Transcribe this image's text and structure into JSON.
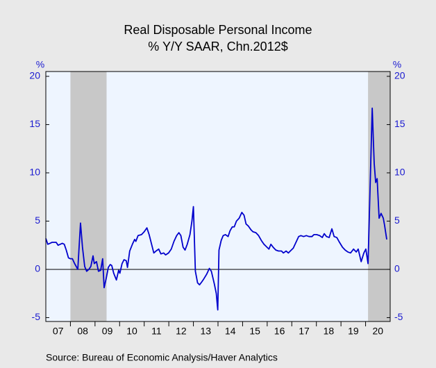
{
  "chart_data": {
    "type": "line",
    "title": "Real Disposable Personal Income",
    "subtitle": "% Y/Y   SAAR, Chn.2012$",
    "ylabel": "%",
    "y2label": "%",
    "source": "Source:  Bureau of Economic Analysis/Haver Analytics",
    "xlim": [
      2007,
      2021
    ],
    "ylim": [
      -5.4,
      20.5
    ],
    "y2lim": [
      -5.4,
      20.5
    ],
    "yticks": [
      -5,
      0,
      5,
      10,
      15,
      20
    ],
    "y2ticks": [
      -5,
      0,
      5,
      10,
      15,
      20
    ],
    "xticks": [
      {
        "value": 2007.5,
        "label": "07"
      },
      {
        "value": 2008.5,
        "label": "08"
      },
      {
        "value": 2009.5,
        "label": "09"
      },
      {
        "value": 2010.5,
        "label": "10"
      },
      {
        "value": 2011.5,
        "label": "11"
      },
      {
        "value": 2012.5,
        "label": "12"
      },
      {
        "value": 2013.5,
        "label": "13"
      },
      {
        "value": 2014.5,
        "label": "14"
      },
      {
        "value": 2015.5,
        "label": "15"
      },
      {
        "value": 2016.5,
        "label": "16"
      },
      {
        "value": 2017.5,
        "label": "17"
      },
      {
        "value": 2018.5,
        "label": "18"
      },
      {
        "value": 2019.5,
        "label": "19"
      },
      {
        "value": 2020.5,
        "label": "20"
      }
    ],
    "xtick_marks": [
      2008,
      2009,
      2010,
      2011,
      2012,
      2013,
      2014,
      2015,
      2016,
      2017,
      2018,
      2019,
      2020
    ],
    "recessions": [
      [
        2008.0,
        2009.47
      ],
      [
        2020.1,
        2021
      ]
    ],
    "recession_color": "#c8c8c8",
    "plot_background": "#eef5ff",
    "zero_line": 0,
    "x": [
      2007.0,
      2007.08,
      2007.17,
      2007.25,
      2007.42,
      2007.5,
      2007.67,
      2007.75,
      2007.83,
      2007.92,
      2008.0,
      2008.08,
      2008.17,
      2008.3,
      2008.41,
      2008.49,
      2008.58,
      2008.66,
      2008.75,
      2008.83,
      2008.92,
      2008.97,
      2009.06,
      2009.14,
      2009.23,
      2009.31,
      2009.37,
      2009.45,
      2009.54,
      2009.62,
      2009.68,
      2009.76,
      2009.87,
      2009.96,
      2010.01,
      2010.1,
      2010.18,
      2010.27,
      2010.32,
      2010.41,
      2010.52,
      2010.61,
      2010.66,
      2010.75,
      2010.89,
      2011.0,
      2011.11,
      2011.2,
      2011.31,
      2011.39,
      2011.48,
      2011.59,
      2011.68,
      2011.79,
      2011.87,
      2011.99,
      2012.1,
      2012.21,
      2012.32,
      2012.41,
      2012.49,
      2012.58,
      2012.66,
      2012.75,
      2012.86,
      2012.94,
      2013.0,
      2013.08,
      2013.17,
      2013.25,
      2013.34,
      2013.42,
      2013.54,
      2013.65,
      2013.73,
      2013.85,
      2013.93,
      2013.99,
      2014.04,
      2014.13,
      2014.21,
      2014.3,
      2014.41,
      2014.49,
      2014.58,
      2014.66,
      2014.75,
      2014.86,
      2014.97,
      2015.06,
      2015.14,
      2015.23,
      2015.34,
      2015.42,
      2015.54,
      2015.65,
      2015.76,
      2015.87,
      2015.99,
      2016.07,
      2016.15,
      2016.24,
      2016.35,
      2016.46,
      2016.58,
      2016.66,
      2016.77,
      2016.86,
      2016.94,
      2017.06,
      2017.17,
      2017.28,
      2017.37,
      2017.48,
      2017.59,
      2017.7,
      2017.82,
      2017.9,
      2018.01,
      2018.13,
      2018.24,
      2018.32,
      2018.41,
      2018.52,
      2018.63,
      2018.72,
      2018.83,
      2018.94,
      2019.06,
      2019.17,
      2019.28,
      2019.39,
      2019.51,
      2019.62,
      2019.7,
      2019.82,
      2019.93,
      2020.01,
      2020.1,
      2020.27,
      2020.35,
      2020.41,
      2020.47,
      2020.55,
      2020.63,
      2020.72,
      2020.77,
      2020.86
    ],
    "series": [
      {
        "name": "Real Disposable Personal Income",
        "color": "#0000cc",
        "values": [
          3.2,
          2.6,
          2.7,
          2.8,
          2.8,
          2.5,
          2.7,
          2.6,
          2.0,
          1.2,
          1.1,
          1.1,
          0.6,
          0.0,
          4.8,
          2.3,
          0.3,
          -0.2,
          0.0,
          0.3,
          1.4,
          0.6,
          0.8,
          -0.2,
          -0.1,
          1.1,
          -1.9,
          -1.0,
          0.2,
          0.5,
          0.4,
          -0.4,
          -1.1,
          -0.1,
          -0.4,
          0.6,
          1.0,
          0.9,
          0.2,
          1.9,
          2.6,
          3.1,
          2.9,
          3.5,
          3.6,
          3.9,
          4.3,
          3.6,
          2.5,
          1.7,
          1.9,
          2.1,
          1.6,
          1.7,
          1.5,
          1.7,
          2.1,
          2.9,
          3.5,
          3.8,
          3.5,
          2.3,
          2.0,
          2.6,
          3.6,
          5.0,
          6.5,
          -0.2,
          -1.4,
          -1.6,
          -1.3,
          -1.0,
          -0.5,
          0.1,
          -0.2,
          -1.5,
          -2.5,
          -4.2,
          2.0,
          3.0,
          3.5,
          3.6,
          3.4,
          4.0,
          4.4,
          4.4,
          5.0,
          5.3,
          5.9,
          5.6,
          4.7,
          4.5,
          4.1,
          3.9,
          3.8,
          3.5,
          3.0,
          2.6,
          2.3,
          2.1,
          2.6,
          2.3,
          2.0,
          1.9,
          1.9,
          1.7,
          1.9,
          1.7,
          1.9,
          2.2,
          2.8,
          3.4,
          3.5,
          3.4,
          3.5,
          3.4,
          3.4,
          3.6,
          3.6,
          3.5,
          3.3,
          3.7,
          3.4,
          3.3,
          4.2,
          3.4,
          3.3,
          2.8,
          2.3,
          2.0,
          1.8,
          1.7,
          2.1,
          1.8,
          2.1,
          0.8,
          1.7,
          2.1,
          0.6,
          16.7,
          11.0,
          9.0,
          9.4,
          5.3,
          5.8,
          5.3,
          4.6,
          3.1
        ]
      }
    ]
  }
}
